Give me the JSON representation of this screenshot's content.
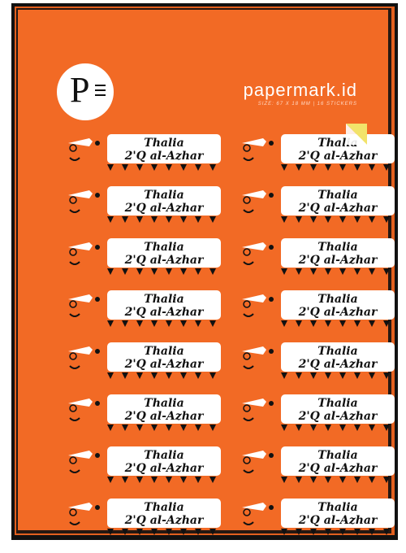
{
  "brand": "papermark.id",
  "size_text": "SIZE: 67 X 18 MM | 16 STICKERS",
  "sticker": {
    "name": "Thalia",
    "school": "2'Q al-Azhar"
  },
  "rows": 8,
  "columns": 2,
  "colors": {
    "sheet": "#f26a25",
    "black": "#111111",
    "white": "#ffffff",
    "accent": "#f2e36a"
  }
}
